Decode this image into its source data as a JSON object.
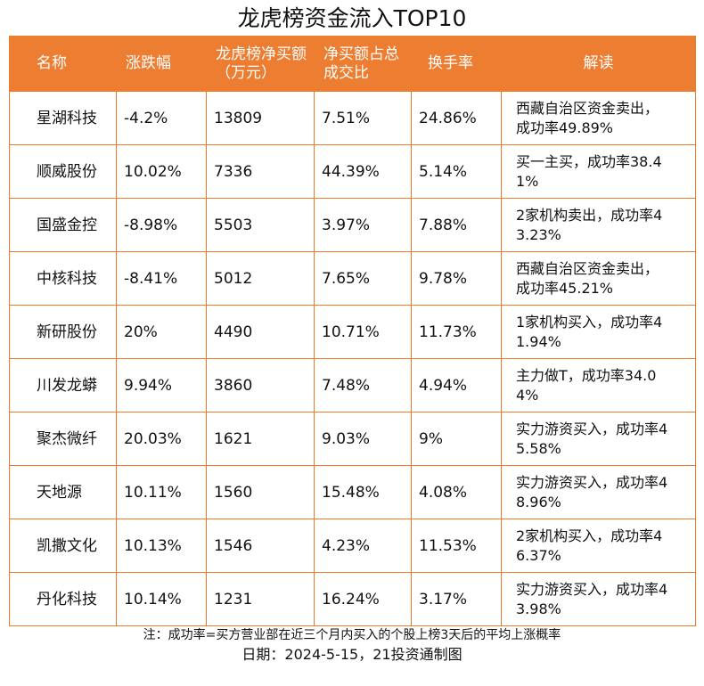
{
  "title": "龙虎榜资金流入TOP10",
  "chart_data": {
    "type": "table",
    "title": "龙虎榜资金流入TOP10",
    "columns": [
      "名称",
      "涨跌幅",
      "龙虎榜净买额（万元）",
      "净买额占总成交比",
      "换手率",
      "解读"
    ],
    "rows": [
      [
        "星湖科技",
        "-4.2%",
        "13809",
        "7.51%",
        "24.86%",
        "西藏自治区资金卖出，成功率49.89%"
      ],
      [
        "顺威股份",
        "10.02%",
        "7336",
        "44.39%",
        "5.14%",
        "买一主买，成功率38.41%"
      ],
      [
        "国盛金控",
        "-8.98%",
        "5503",
        "3.97%",
        "7.88%",
        "2家机构卖出，成功率43.23%"
      ],
      [
        "中核科技",
        "-8.41%",
        "5012",
        "7.65%",
        "9.78%",
        "西藏自治区资金卖出，成功率45.21%"
      ],
      [
        "新研股份",
        "20%",
        "4490",
        "10.71%",
        "11.73%",
        "1家机构买入，成功率41.94%"
      ],
      [
        "川发龙蟒",
        "9.94%",
        "3860",
        "7.48%",
        "4.94%",
        "主力做T，成功率34.04%"
      ],
      [
        "聚杰微纤",
        "20.03%",
        "1621",
        "9.03%",
        "9%",
        "实力游资买入，成功率45.58%"
      ],
      [
        "天地源",
        "10.11%",
        "1560",
        "15.48%",
        "4.08%",
        "实力游资买入，成功率48.96%"
      ],
      [
        "凯撒文化",
        "10.13%",
        "1546",
        "4.23%",
        "11.53%",
        "2家机构买入，成功率46.37%"
      ],
      [
        "丹化科技",
        "10.14%",
        "1231",
        "16.24%",
        "3.17%",
        "实力游资买入，成功率43.98%"
      ]
    ]
  },
  "footer": {
    "note": "注：成功率=买方营业部在近三个月内买入的个股上榜3天后的平均上涨概率",
    "date": "日期：2024-5-15，21投资通制图"
  },
  "colors": {
    "header_bg": "#ed7d31",
    "border": "#ec7a2c"
  }
}
